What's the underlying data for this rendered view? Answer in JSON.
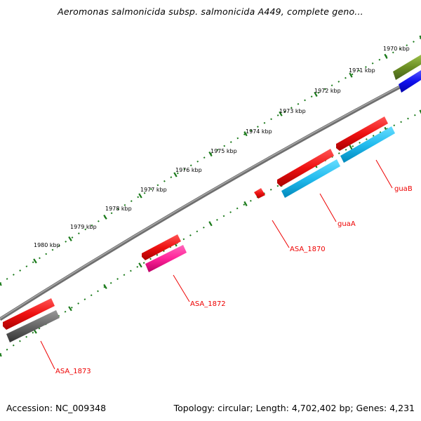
{
  "title": "Aeromonas salmonicida subsp. salmonicida A449, complete geno...",
  "footer": {
    "accession": "Accession: NC_009348",
    "summary": "Topology: circular; Length: 4,702,402 bp; Genes: 4,231"
  },
  "kbp_labels": [
    "1970 kbp",
    "1971 kbp",
    "1972 kbp",
    "1973 kbp",
    "1974 kbp",
    "1975 kbp",
    "1976 kbp",
    "1977 kbp",
    "1978 kbp",
    "1979 kbp",
    "1980 kbp"
  ],
  "gene_labels": [
    "guaB",
    "guaA",
    "ASA_1870",
    "ASA_1872",
    "ASA_1873"
  ],
  "colors": {
    "backbone": "#8a8a8a",
    "ticks": "#1a7a1a",
    "gene_red": "#ee1111",
    "gene_cyan": "#22bbee",
    "gene_magenta": "#ff2299",
    "gene_gray": "#666666",
    "gene_olive": "#6b8e23",
    "gene_blue": "#1111ee",
    "label_red": "#ee0000"
  }
}
